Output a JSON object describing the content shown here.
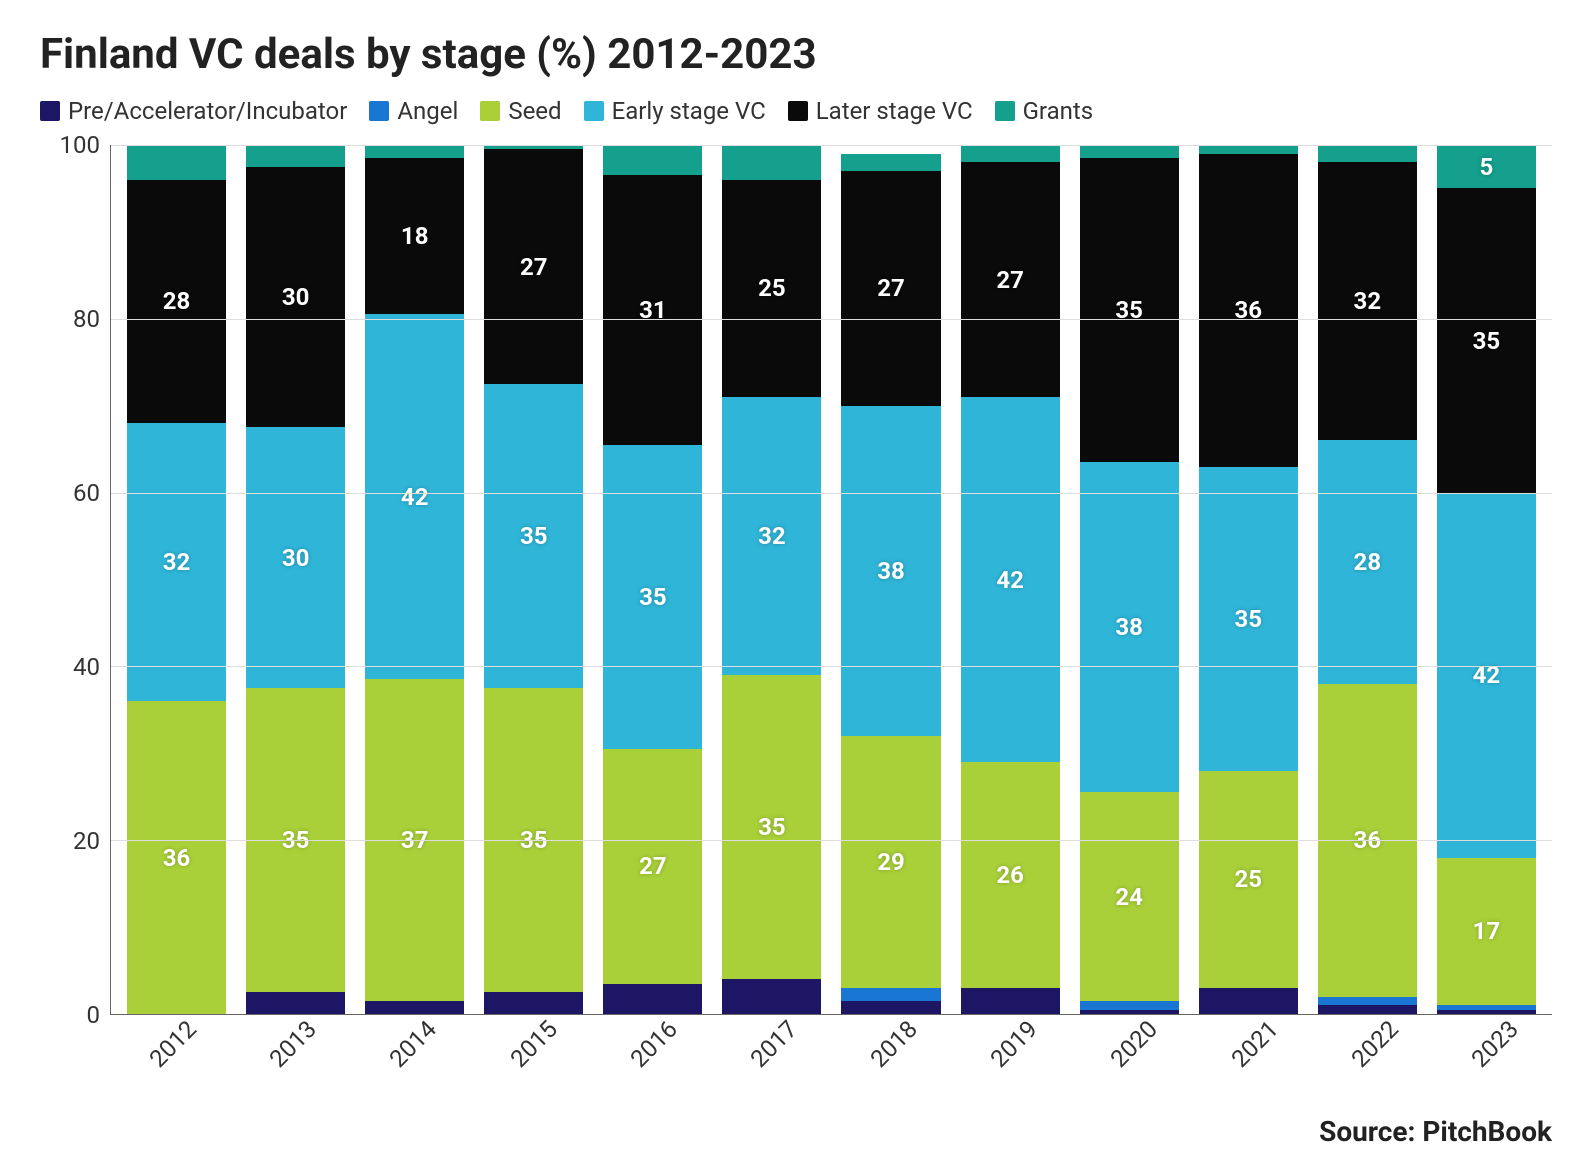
{
  "chart": {
    "type": "stacked-bar",
    "title": "Finland VC deals by stage (%) 2012-2023",
    "title_fontsize": 42,
    "legend_fontsize": 24,
    "axis_fontsize": 24,
    "seg_label_fontsize": 24,
    "source_fontsize": 28,
    "background_color": "#ffffff",
    "grid_color": "#dddddd",
    "axis_color": "#666666",
    "text_color": "#333333",
    "ylim": [
      0,
      100
    ],
    "ytick_step": 20,
    "yticks": [
      0,
      20,
      40,
      60,
      80,
      100
    ],
    "bar_gap_pct": 15,
    "label_min_value": 5,
    "series": [
      {
        "key": "pre",
        "label": "Pre/Accelerator/Incubator",
        "color": "#1c1664"
      },
      {
        "key": "angel",
        "label": "Angel",
        "color": "#1976d2"
      },
      {
        "key": "seed",
        "label": "Seed",
        "color": "#a9d039"
      },
      {
        "key": "early",
        "label": "Early stage VC",
        "color": "#2fb5d8"
      },
      {
        "key": "later",
        "label": "Later stage VC",
        "color": "#0a0a0a"
      },
      {
        "key": "grants",
        "label": "Grants",
        "color": "#159f8d"
      }
    ],
    "categories": [
      "2012",
      "2013",
      "2014",
      "2015",
      "2016",
      "2017",
      "2018",
      "2019",
      "2020",
      "2021",
      "2022",
      "2023"
    ],
    "data": {
      "pre": [
        0,
        2.5,
        1.5,
        2.5,
        3.5,
        4,
        1.5,
        3,
        0.5,
        3,
        1,
        0.5
      ],
      "angel": [
        0,
        0,
        0,
        0,
        0,
        0,
        1.5,
        0,
        1,
        0,
        1,
        0.5
      ],
      "seed": [
        36,
        35,
        37,
        35,
        27,
        35,
        29,
        26,
        24,
        25,
        36,
        17
      ],
      "early": [
        32,
        30,
        42,
        35,
        35,
        32,
        38,
        42,
        38,
        35,
        28,
        42
      ],
      "later": [
        28,
        30,
        18,
        27,
        31,
        25,
        27,
        27,
        35,
        36,
        32,
        35
      ],
      "grants": [
        4,
        2.5,
        1.5,
        0.5,
        3.5,
        4,
        2,
        2,
        1.5,
        1,
        2,
        5
      ]
    },
    "source": "Source: PitchBook"
  }
}
